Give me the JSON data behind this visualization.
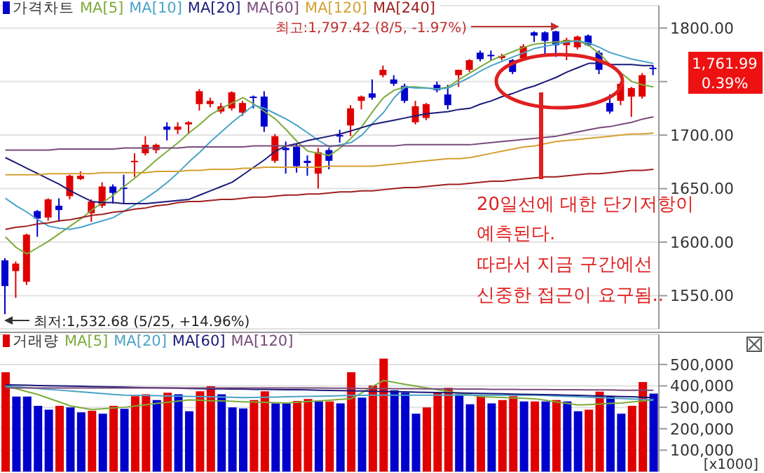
{
  "chart_data": [
    {
      "type": "candlestick",
      "categories": [
        null,
        null,
        null,
        null,
        null,
        null,
        null,
        null,
        null,
        null,
        null,
        null,
        null,
        null,
        null,
        null,
        null,
        null,
        null,
        null,
        null,
        null,
        null,
        null,
        null,
        null,
        null,
        null,
        null,
        null,
        null,
        null,
        null,
        null,
        null,
        null,
        null,
        null,
        null,
        null,
        null,
        null,
        null,
        null,
        null,
        null,
        null,
        null,
        null,
        null,
        null,
        null,
        null,
        null,
        null,
        null,
        null,
        null,
        null,
        null,
        null
      ],
      "series": [
        {
          "name": "가격차트",
          "ohlc": [
            [
              1583,
              1585,
              1532.68,
              1559
            ],
            [
              1573,
              1582,
              1548,
              1580
            ],
            [
              1563,
              1608,
              1560,
              1607
            ],
            [
              1629,
              1630,
              1605,
              1622
            ],
            [
              1623,
              1641,
              1620,
              1640
            ],
            [
              1634,
              1641,
              1619,
              1630
            ],
            [
              1643,
              1663,
              1640,
              1662
            ],
            [
              1659,
              1666,
              1658,
              1662
            ],
            [
              1627,
              1640,
              1619,
              1638
            ],
            [
              1634,
              1656,
              1632,
              1652
            ],
            [
              1652,
              1654,
              1636,
              1646
            ],
            [
              1651,
              1663,
              1636,
              1650
            ],
            [
              1675,
              1683,
              1661,
              1676
            ],
            [
              1683,
              1699,
              1681,
              1691
            ],
            [
              1686,
              1692,
              1683,
              1691
            ],
            [
              1708,
              1712,
              1695,
              1705
            ],
            [
              1705,
              1712,
              1701,
              1708
            ],
            [
              1710,
              1713,
              1701,
              1712
            ],
            [
              1729,
              1743,
              1723,
              1741
            ],
            [
              1729,
              1735,
              1726,
              1732
            ],
            [
              1722,
              1730,
              1720,
              1727
            ],
            [
              1725,
              1741,
              1723,
              1740
            ],
            [
              1721,
              1732,
              1718,
              1730
            ],
            [
              1736,
              1737,
              1725,
              1735
            ],
            [
              1736,
              1741,
              1703,
              1708
            ],
            [
              1676,
              1701,
              1674,
              1699
            ],
            [
              1688,
              1694,
              1664,
              1686
            ],
            [
              1689,
              1692,
              1665,
              1671
            ],
            [
              1676,
              1681,
              1662,
              1674
            ],
            [
              1664,
              1688,
              1650,
              1684
            ],
            [
              1686,
              1688,
              1668,
              1676
            ],
            [
              1700,
              1705,
              1693,
              1699
            ],
            [
              1709,
              1728,
              1699,
              1725
            ],
            [
              1732,
              1737,
              1724,
              1736
            ],
            [
              1739,
              1752,
              1733,
              1735
            ],
            [
              1756,
              1765,
              1754,
              1761
            ],
            [
              1752,
              1756,
              1746,
              1748
            ],
            [
              1746,
              1748,
              1730,
              1732
            ],
            [
              1712,
              1732,
              1710,
              1727
            ],
            [
              1716,
              1730,
              1714,
              1729
            ],
            [
              1747,
              1750,
              1740,
              1742
            ],
            [
              1738,
              1747,
              1724,
              1728
            ],
            [
              1756,
              1761,
              1745,
              1761
            ],
            [
              1761,
              1771,
              1759,
              1770
            ],
            [
              1777,
              1779,
              1769,
              1771
            ],
            [
              1775,
              1779,
              1770,
              1774
            ],
            [
              1772,
              1776,
              1770,
              1774
            ],
            [
              1770,
              1771,
              1757,
              1759
            ],
            [
              1772,
              1785,
              1770,
              1783
            ],
            [
              1796,
              1797,
              1787,
              1793
            ],
            [
              1796,
              1797,
              1775,
              1788
            ],
            [
              1797,
              1797.42,
              1773,
              1784
            ],
            [
              1784,
              1791,
              1770,
              1789
            ],
            [
              1782,
              1793,
              1780,
              1792
            ],
            [
              1793,
              1794,
              1783,
              1784
            ],
            [
              1777,
              1779,
              1757,
              1761
            ],
            [
              1730,
              1738,
              1720,
              1722
            ],
            [
              1732,
              1750,
              1728,
              1748
            ],
            [
              1736,
              1745,
              1717,
              1744
            ],
            [
              1736,
              1758,
              1734,
              1756
            ],
            [
              1763,
              1765,
              1756,
              1761.99
            ]
          ],
          "colors": [
            "#0000cc",
            "#e00000",
            "#e00000",
            "#0000cc",
            "#e00000",
            "#0000cc",
            "#e00000",
            "#e00000",
            "#e00000",
            "#e00000",
            "#0000cc",
            "#0000cc",
            "#e00000",
            "#e00000",
            "#e00000",
            "#0000cc",
            "#e00000",
            "#e00000",
            "#e00000",
            "#e00000",
            "#e00000",
            "#e00000",
            "#e00000",
            "#0000cc",
            "#0000cc",
            "#e00000",
            "#0000cc",
            "#0000cc",
            "#0000cc",
            "#e00000",
            "#0000cc",
            "#0000cc",
            "#e00000",
            "#e00000",
            "#0000cc",
            "#e00000",
            "#0000cc",
            "#0000cc",
            "#e00000",
            "#e00000",
            "#0000cc",
            "#0000cc",
            "#e00000",
            "#e00000",
            "#0000cc",
            "#0000cc",
            "#e00000",
            "#0000cc",
            "#e00000",
            "#0000cc",
            "#0000cc",
            "#0000cc",
            "#e00000",
            "#e00000",
            "#0000cc",
            "#0000cc",
            "#0000cc",
            "#e00000",
            "#e00000",
            "#e00000",
            "#0000cc"
          ]
        },
        {
          "name": "MA[5]",
          "type": "line",
          "color": "#7cab3b",
          "values": [
            1605,
            1595,
            1589,
            1595,
            1601,
            1608,
            1615,
            1622,
            1630,
            1637,
            1644,
            1652,
            1660,
            1668,
            1677,
            1685,
            1693,
            1702,
            1710,
            1719,
            1725,
            1730,
            1735,
            1729,
            1722,
            1715,
            1705,
            1694,
            1685,
            1683,
            1681,
            1688,
            1697,
            1708,
            1722,
            1735,
            1742,
            1745,
            1745,
            1744,
            1743,
            1745,
            1752,
            1758,
            1764,
            1770,
            1774,
            1778,
            1782,
            1785,
            1786,
            1787,
            1788,
            1788,
            1784,
            1776,
            1766,
            1758,
            1750,
            1747,
            1745
          ]
        },
        {
          "name": "MA[10]",
          "type": "line",
          "color": "#4aa3c8",
          "values": [
            1641,
            1634,
            1628,
            1621,
            1615,
            1613,
            1612,
            1614,
            1617,
            1620,
            1623,
            1629,
            1635,
            1641,
            1648,
            1656,
            1665,
            1675,
            1684,
            1694,
            1703,
            1712,
            1720,
            1728,
            1725,
            1720,
            1715,
            1709,
            1702,
            1695,
            1689,
            1691,
            1693,
            1700,
            1711,
            1721,
            1735,
            1745,
            1744,
            1744,
            1743,
            1744,
            1749,
            1754,
            1760,
            1765,
            1769,
            1773,
            1777,
            1781,
            1783,
            1785,
            1787,
            1788,
            1786,
            1782,
            1777,
            1774,
            1771,
            1769,
            1767
          ]
        },
        {
          "name": "MA[20]",
          "type": "line",
          "color": "#1a1a7a",
          "values": [
            1679,
            1674,
            1669,
            1664,
            1659,
            1654,
            1648,
            1643,
            1638,
            1637,
            1637,
            1636,
            1636,
            1636,
            1637,
            1638,
            1639,
            1640,
            1644,
            1648,
            1652,
            1656,
            1663,
            1670,
            1677,
            1685,
            1690,
            1692,
            1695,
            1697,
            1699,
            1701,
            1704,
            1707,
            1710,
            1712,
            1714,
            1716,
            1718,
            1720,
            1721,
            1722,
            1724,
            1725,
            1729,
            1732,
            1736,
            1739,
            1743,
            1746,
            1750,
            1754,
            1759,
            1763,
            1767,
            1767,
            1766,
            1766,
            1766,
            1765,
            1765
          ]
        },
        {
          "name": "MA[60]",
          "type": "line",
          "color": "#7a4a7a",
          "values": [
            1686,
            1686,
            1686,
            1686,
            1686,
            1687,
            1687,
            1687,
            1687,
            1687,
            1687,
            1688,
            1688,
            1688,
            1688,
            1688,
            1688,
            1689,
            1689,
            1689,
            1689,
            1689,
            1689,
            1690,
            1690,
            1690,
            1690,
            1690,
            1690,
            1690,
            1690,
            1690,
            1690,
            1690,
            1690,
            1690,
            1690,
            1691,
            1691,
            1691,
            1691,
            1691,
            1691,
            1691,
            1692,
            1693,
            1694,
            1695,
            1696,
            1697,
            1698,
            1699,
            1701,
            1703,
            1705,
            1707,
            1708,
            1710,
            1712,
            1715,
            1717
          ]
        },
        {
          "name": "MA[120]",
          "type": "line",
          "color": "#d4a030",
          "values": [
            1663,
            1663,
            1663,
            1663,
            1664,
            1664,
            1664,
            1664,
            1664,
            1665,
            1665,
            1665,
            1665,
            1665,
            1666,
            1666,
            1666,
            1667,
            1667,
            1668,
            1668,
            1668,
            1669,
            1669,
            1670,
            1670,
            1670,
            1670,
            1670,
            1670,
            1671,
            1671,
            1671,
            1671,
            1671,
            1672,
            1673,
            1674,
            1675,
            1676,
            1677,
            1678,
            1678,
            1679,
            1681,
            1683,
            1685,
            1687,
            1689,
            1690,
            1692,
            1694,
            1695,
            1696,
            1697,
            1698,
            1699,
            1700,
            1701,
            1701,
            1702
          ]
        },
        {
          "name": "MA[240]",
          "type": "line",
          "color": "#a02020",
          "values": [
            1612,
            1614,
            1615,
            1617,
            1618,
            1620,
            1621,
            1623,
            1625,
            1626,
            1628,
            1629,
            1631,
            1632,
            1634,
            1635,
            1637,
            1638,
            1638,
            1639,
            1640,
            1640,
            1641,
            1642,
            1642,
            1643,
            1644,
            1644,
            1645,
            1645,
            1646,
            1647,
            1647,
            1648,
            1648,
            1649,
            1650,
            1651,
            1651,
            1652,
            1653,
            1654,
            1654,
            1655,
            1656,
            1657,
            1657,
            1658,
            1659,
            1660,
            1661,
            1661,
            1662,
            1663,
            1664,
            1664,
            1665,
            1666,
            1667,
            1667,
            1668
          ]
        }
      ],
      "ylim": [
        1519,
        1821
      ],
      "yticks": [
        {
          "value": 1550,
          "label": "1550.00"
        },
        {
          "value": 1600,
          "label": "1600.00"
        },
        {
          "value": 1650,
          "label": "1650.00"
        },
        {
          "value": 1700,
          "label": "1700.00"
        },
        {
          "value": 1750,
          "label": null
        },
        {
          "value": 1800,
          "label": "1800.00"
        }
      ],
      "grid": "y",
      "legend": "top left",
      "marker": "none",
      "annotations": [
        "최고:1,797.42 (8/5, -1.97%)",
        "최저:1,532.68 (5/25, +14.96%)",
        "1,761.99",
        "0.39%",
        "20일선에 대한 단기저항이",
        "예측된다.",
        "따라서 지금 구간에선",
        "신중한 접근이 요구됨.."
      ]
    },
    {
      "type": "bar",
      "categories": [
        null,
        null,
        null,
        null,
        null,
        null,
        null,
        null,
        null,
        null,
        null,
        null,
        null,
        null,
        null,
        null,
        null,
        null,
        null,
        null,
        null,
        null,
        null,
        null,
        null,
        null,
        null,
        null,
        null,
        null,
        null,
        null,
        null,
        null,
        null,
        null,
        null,
        null,
        null,
        null,
        null,
        null,
        null,
        null,
        null,
        null,
        null,
        null,
        null,
        null,
        null,
        null,
        null,
        null,
        null,
        null,
        null,
        null,
        null,
        null,
        null
      ],
      "series": [
        {
          "name": "거래량",
          "values": [
            464000,
            350000,
            350000,
            307000,
            289000,
            307000,
            300000,
            277000,
            284000,
            270000,
            307000,
            293000,
            352000,
            361000,
            334000,
            368000,
            361000,
            282000,
            375000,
            398000,
            361000,
            300000,
            295000,
            334000,
            375000,
            318000,
            318000,
            330000,
            339000,
            327000,
            327000,
            318000,
            464000,
            345000,
            402000,
            527000,
            380000,
            368000,
            270000,
            300000,
            368000,
            391000,
            361000,
            314000,
            350000,
            318000,
            334000,
            352000,
            327000,
            327000,
            327000,
            334000,
            327000,
            282000,
            289000,
            373000,
            350000,
            270000,
            307000,
            418000,
            364000
          ],
          "colors": [
            "#e00000",
            "#0000cc",
            "#0000cc",
            "#0000cc",
            "#0000cc",
            "#e00000",
            "#0000cc",
            "#0000cc",
            "#e00000",
            "#0000cc",
            "#e00000",
            "#0000cc",
            "#e00000",
            "#e00000",
            "#0000cc",
            "#e00000",
            "#0000cc",
            "#0000cc",
            "#e00000",
            "#e00000",
            "#0000cc",
            "#0000cc",
            "#0000cc",
            "#e00000",
            "#e00000",
            "#0000cc",
            "#0000cc",
            "#e00000",
            "#e00000",
            "#0000cc",
            "#e00000",
            "#0000cc",
            "#e00000",
            "#0000cc",
            "#e00000",
            "#e00000",
            "#0000cc",
            "#0000cc",
            "#0000cc",
            "#e00000",
            "#e00000",
            "#e00000",
            "#0000cc",
            "#0000cc",
            "#e00000",
            "#0000cc",
            "#e00000",
            "#e00000",
            "#0000cc",
            "#e00000",
            "#0000cc",
            "#e00000",
            "#0000cc",
            "#0000cc",
            "#e00000",
            "#e00000",
            "#0000cc",
            "#0000cc",
            "#e00000",
            "#e00000",
            "#0000cc"
          ]
        },
        {
          "name": "MA[5]",
          "type": "line",
          "color": "#7cab3b",
          "values": [
            400000,
            387000,
            373000,
            360000,
            342000,
            325000,
            307000,
            298000,
            290000,
            293000,
            297000,
            300000,
            306000,
            312000,
            318000,
            323000,
            329000,
            335000,
            333000,
            331000,
            330000,
            328000,
            326000,
            325000,
            323000,
            322000,
            320000,
            323000,
            327000,
            330000,
            333000,
            337000,
            340000,
            368000,
            397000,
            425000,
            416000,
            407000,
            399000,
            390000,
            382000,
            374000,
            366000,
            358000,
            350000,
            348000,
            346000,
            344000,
            342000,
            340000,
            333000,
            325000,
            318000,
            311000,
            313000,
            315000,
            318000,
            320000,
            325000,
            330000,
            335000
          ]
        },
        {
          "name": "MA[20]",
          "type": "line",
          "color": "#4aa3c8",
          "values": [
            400000,
            396000,
            392000,
            388000,
            384000,
            380000,
            376000,
            372000,
            368000,
            364000,
            360000,
            357000,
            356000,
            355000,
            354000,
            353000,
            352000,
            351000,
            350000,
            349000,
            348000,
            347000,
            345000,
            346000,
            347000,
            348000,
            349000,
            350000,
            351000,
            352000,
            353000,
            354000,
            355000,
            356000,
            357000,
            357000,
            357000,
            357000,
            357000,
            357000,
            357000,
            357000,
            357000,
            357000,
            357000,
            357000,
            357000,
            357000,
            357000,
            357000,
            355000,
            353000,
            351000,
            349000,
            347000,
            345000,
            343000,
            341000,
            339000,
            337000,
            335000
          ]
        },
        {
          "name": "MA[60]",
          "type": "line",
          "color": "#1a1a7a",
          "values": [
            405000,
            404000,
            403000,
            402000,
            401000,
            400000,
            399000,
            398000,
            397000,
            396000,
            395000,
            394000,
            393000,
            392000,
            391000,
            390000,
            389000,
            388000,
            387000,
            386000,
            386000,
            385000,
            385000,
            384000,
            384000,
            383000,
            382000,
            382000,
            381000,
            380000,
            379000,
            378000,
            377000,
            376000,
            375000,
            374000,
            373000,
            372000,
            371000,
            370000,
            369000,
            368000,
            367000,
            366000,
            365000,
            364000,
            363000,
            362000,
            361000,
            360000,
            359000,
            358000,
            357000,
            356000,
            354000,
            353000,
            352000,
            350000,
            349000,
            347000,
            345000
          ]
        },
        {
          "name": "MA[120]",
          "type": "line",
          "color": "#7a4a7a",
          "values": [
            390000,
            390000,
            390000,
            390000,
            390000,
            390000,
            390000,
            390000,
            390000,
            390000,
            390000,
            390000,
            390000,
            390000,
            390000,
            390000,
            390000,
            390000,
            390000,
            390000,
            390000,
            390000,
            390000,
            390000,
            390000,
            390000,
            390000,
            390000,
            390000,
            390000,
            389000,
            389000,
            389000,
            388000,
            388000,
            388000,
            387000,
            387000,
            387000,
            386000,
            386000,
            386000,
            385000,
            385000,
            385000,
            384000,
            384000,
            384000,
            383000,
            383000,
            383000,
            382000,
            382000,
            382000,
            381000,
            381000,
            381000,
            380000,
            380000,
            380000,
            380000
          ]
        }
      ],
      "ylim": [
        0,
        640000
      ],
      "yticks": [
        {
          "value": 100000,
          "label": "100,000"
        },
        {
          "value": 200000,
          "label": "200,000"
        },
        {
          "value": 300000,
          "label": "300,000"
        },
        {
          "value": 400000,
          "label": "400,000"
        },
        {
          "value": 500000,
          "label": "500,000"
        }
      ],
      "grid": "y",
      "legend": "top left",
      "marker": "none",
      "annotations": [
        "[x1000]"
      ]
    }
  ]
}
